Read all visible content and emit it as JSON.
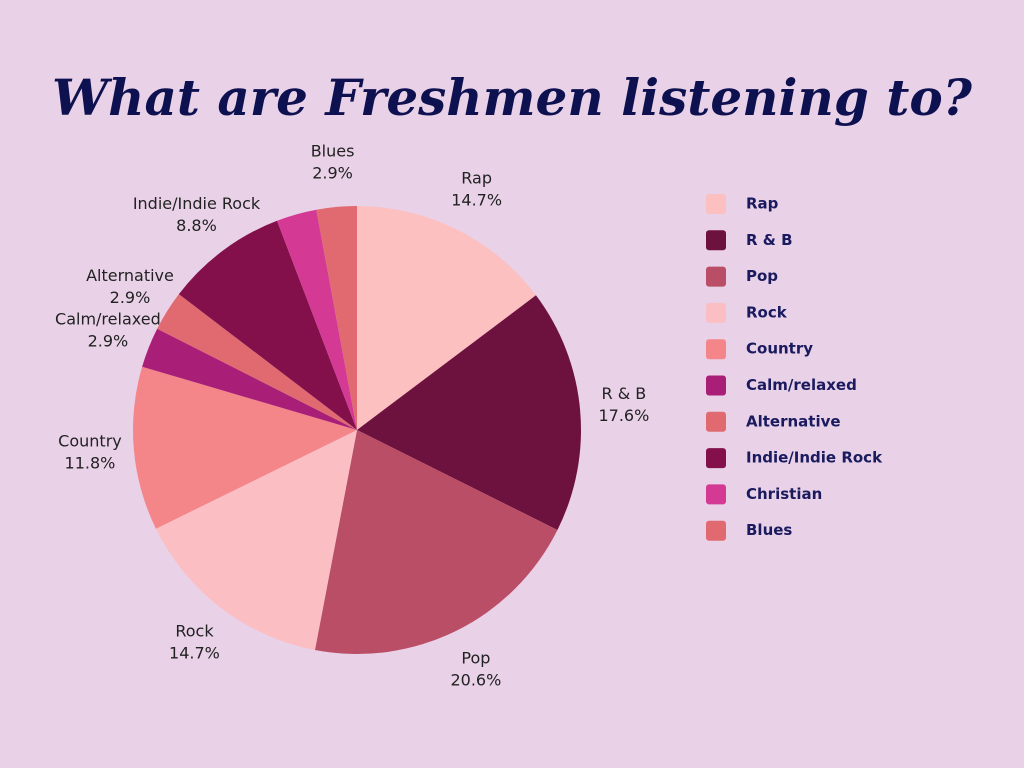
{
  "chart_data": {
    "type": "pie",
    "title": "What are Freshmen listening to?",
    "categories": [
      "Rap",
      "R & B",
      "Pop",
      "Rock",
      "Country",
      "Calm/relaxed",
      "Alternative",
      "Indie/Indie Rock",
      "Christian",
      "Blues"
    ],
    "values": [
      14.7,
      17.6,
      20.6,
      14.7,
      11.8,
      2.9,
      2.9,
      8.8,
      2.9,
      2.9
    ],
    "value_labels": [
      "14.7%",
      "17.6%",
      "20.6%",
      "14.7%",
      "11.8%",
      "2.9%",
      "2.9%",
      "8.8%",
      null,
      "2.9%"
    ],
    "colors": [
      "#fcc0c1",
      "#6d123e",
      "#b94e66",
      "#fbbfc3",
      "#f4868a",
      "#a91f78",
      "#e06a70",
      "#830f4b",
      "#d43a94",
      "#e06a70"
    ],
    "legend": "right"
  }
}
